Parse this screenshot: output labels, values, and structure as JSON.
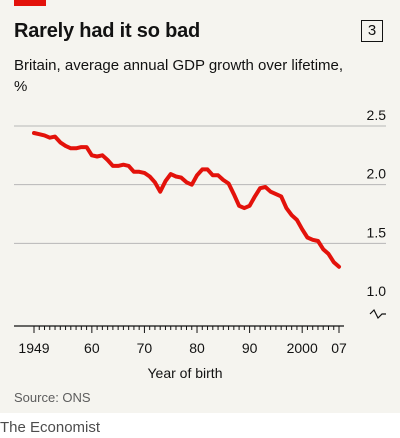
{
  "header": {
    "title": "Rarely had it so bad",
    "chart_number": "3",
    "subtitle": "Britain, average annual GDP growth over lifetime, %"
  },
  "footer": {
    "source": "Source: ONS",
    "credit": "The Economist"
  },
  "colors": {
    "line": "#e3120b",
    "accent": "#e3120b",
    "background": "#f5f4ef",
    "grid": "#b7b7b7"
  },
  "chart_data": {
    "type": "line",
    "title": "Rarely had it so bad",
    "subtitle": "Britain, average annual GDP growth over lifetime, %",
    "xlabel": "Year of birth",
    "ylabel": "",
    "xlim": [
      1949,
      2007
    ],
    "ylim": [
      1.0,
      2.5
    ],
    "y_axis_broken": true,
    "grid": "horizontal",
    "x_ticks": [
      {
        "value": 1949,
        "label": "1949"
      },
      {
        "value": 1960,
        "label": "60"
      },
      {
        "value": 1970,
        "label": "70"
      },
      {
        "value": 1980,
        "label": "80"
      },
      {
        "value": 1990,
        "label": "90"
      },
      {
        "value": 2000,
        "label": "2000"
      },
      {
        "value": 2007,
        "label": "07"
      }
    ],
    "y_ticks": [
      {
        "value": 2.5,
        "label": "2.5"
      },
      {
        "value": 2.0,
        "label": "2.0"
      },
      {
        "value": 1.5,
        "label": "1.5"
      },
      {
        "value": 1.0,
        "label": "1.0"
      }
    ],
    "x": [
      1949,
      1950,
      1951,
      1952,
      1953,
      1954,
      1955,
      1956,
      1957,
      1958,
      1959,
      1960,
      1961,
      1962,
      1963,
      1964,
      1965,
      1966,
      1967,
      1968,
      1969,
      1970,
      1971,
      1972,
      1973,
      1974,
      1975,
      1976,
      1977,
      1978,
      1979,
      1980,
      1981,
      1982,
      1983,
      1984,
      1985,
      1986,
      1987,
      1988,
      1989,
      1990,
      1991,
      1992,
      1993,
      1994,
      1995,
      1996,
      1997,
      1998,
      1999,
      2000,
      2001,
      2002,
      2003,
      2004,
      2005,
      2006,
      2007
    ],
    "series": [
      {
        "values": [
          2.44,
          2.43,
          2.42,
          2.4,
          2.41,
          2.36,
          2.33,
          2.31,
          2.31,
          2.32,
          2.32,
          2.25,
          2.24,
          2.25,
          2.21,
          2.16,
          2.16,
          2.17,
          2.16,
          2.11,
          2.11,
          2.1,
          2.07,
          2.02,
          1.94,
          2.03,
          2.09,
          2.07,
          2.06,
          2.02,
          2.0,
          2.08,
          2.13,
          2.13,
          2.08,
          2.08,
          2.04,
          2.01,
          1.92,
          1.82,
          1.8,
          1.82,
          1.9,
          1.97,
          1.98,
          1.94,
          1.92,
          1.9,
          1.8,
          1.74,
          1.7,
          1.62,
          1.55,
          1.53,
          1.52,
          1.45,
          1.41,
          1.34,
          1.3
        ]
      }
    ]
  }
}
